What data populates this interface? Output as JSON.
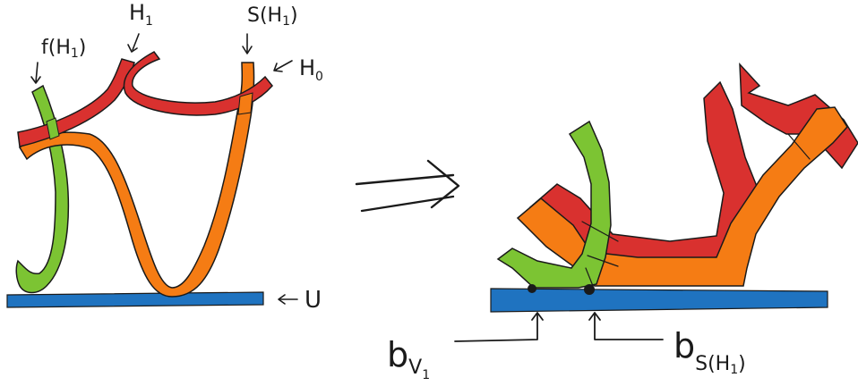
{
  "left_diagram": {
    "labels": {
      "f_label": "f(H",
      "f_sub": "1",
      "f_close": ")",
      "h1_label": "H",
      "h1_sub": "1",
      "s_label": "S(H",
      "s_sub": "1",
      "s_close": ")",
      "h0_label": "H",
      "h0_sub": "0",
      "u_label": "U"
    }
  },
  "right_diagram": {
    "labels": {
      "bv_label": "b",
      "bv_sub": "V",
      "bv_subsub": "1",
      "bs_label": "b",
      "bs_sub": "S(H",
      "bs_subsub": "1",
      "bs_close": ")"
    }
  },
  "colors": {
    "red": "#d9312f",
    "orange": "#f57c14",
    "green": "#7cc433",
    "blue": "#1f73c0",
    "ink": "#1a1a1a"
  }
}
